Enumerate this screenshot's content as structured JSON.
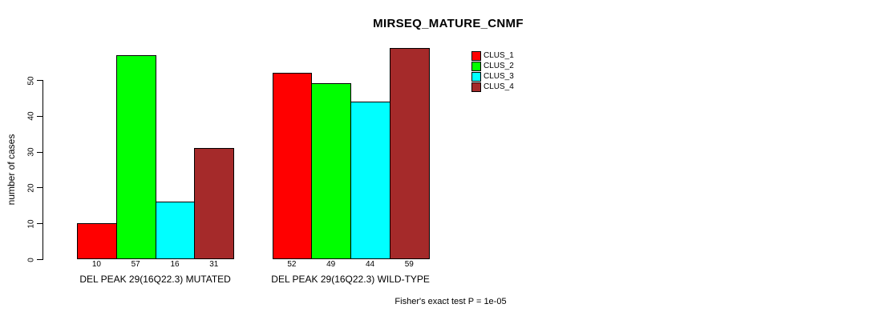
{
  "chart_data": {
    "type": "bar",
    "title": "MIRSEQ_MATURE_CNMF",
    "xlabel": "",
    "ylabel": "number of cases",
    "ylim": [
      0,
      50
    ],
    "yticks": [
      0,
      10,
      20,
      30,
      40,
      50
    ],
    "grid": false,
    "legend_position": "top-right",
    "bar_labels_shown": true,
    "categories": [
      "DEL PEAK 29(16Q22.3) MUTATED",
      "DEL PEAK 29(16Q22.3) WILD-TYPE"
    ],
    "groups": [
      {
        "label": "DEL PEAK 29(16Q22.3) MUTATED",
        "values": [
          10,
          57,
          16,
          31
        ]
      },
      {
        "label": "DEL PEAK 29(16Q22.3) WILD-TYPE",
        "values": [
          52,
          49,
          44,
          59
        ]
      }
    ],
    "series": [
      {
        "name": "CLUS_1",
        "color": "#FF0000"
      },
      {
        "name": "CLUS_2",
        "color": "#00FF00"
      },
      {
        "name": "CLUS_3",
        "color": "#00FFFF"
      },
      {
        "name": "CLUS_4",
        "color": "#A52A2A"
      }
    ],
    "annotation": "Fisher's exact test P = 1e-05",
    "colors": {
      "axis": "#000000",
      "background": "#FFFFFF",
      "text": "#000000"
    }
  }
}
